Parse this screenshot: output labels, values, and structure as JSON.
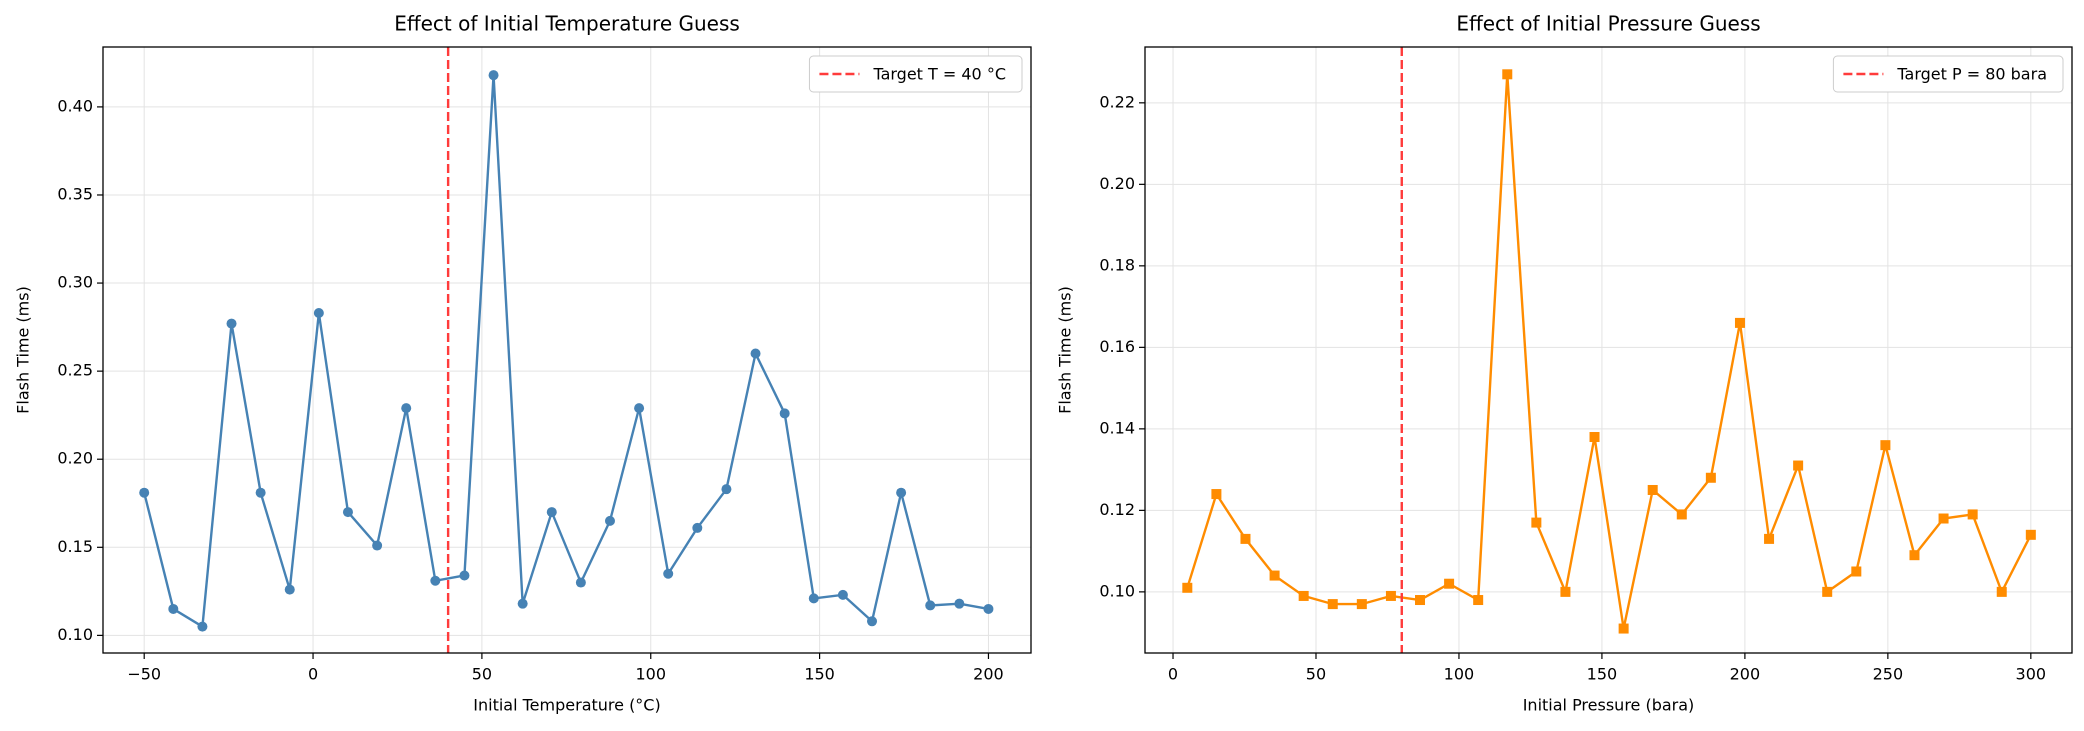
{
  "chart_data": [
    {
      "type": "line",
      "title": "Effect of Initial Temperature Guess",
      "x_label": "Initial Temperature (°C)",
      "y_label": "Flash Time (ms)",
      "x": [
        -50,
        -41.38,
        -32.76,
        -24.14,
        -15.52,
        -6.9,
        1.72,
        10.34,
        18.97,
        27.59,
        36.21,
        44.83,
        53.45,
        62.07,
        70.69,
        79.31,
        87.93,
        96.55,
        105.17,
        113.79,
        122.41,
        131.03,
        139.66,
        148.28,
        156.9,
        165.52,
        174.14,
        182.76,
        191.38,
        200
      ],
      "values": [
        0.181,
        0.115,
        0.105,
        0.277,
        0.181,
        0.126,
        0.283,
        0.17,
        0.151,
        0.229,
        0.131,
        0.134,
        0.418,
        0.118,
        0.17,
        0.13,
        0.165,
        0.229,
        0.135,
        0.161,
        0.183,
        0.26,
        0.226,
        0.121,
        0.123,
        0.108,
        0.181,
        0.117,
        0.118,
        0.115
      ],
      "color": "#4682b4",
      "marker": "circle",
      "reference_line": {
        "x": 40,
        "label": "Target T = 40 °C",
        "color": "#ff3b3b"
      },
      "legend": "upper right",
      "grid": true,
      "xlim": [
        -62.2,
        212.6
      ],
      "ylim": [
        0.09,
        0.434
      ],
      "xticks": [
        {
          "value": -50,
          "label": "−50"
        },
        0,
        50,
        100,
        150,
        200
      ],
      "yticks": [
        {
          "value": 0.1,
          "label": "0.10"
        },
        0.15,
        {
          "value": 0.2,
          "label": "0.20"
        },
        0.25,
        {
          "value": 0.3,
          "label": "0.30"
        },
        0.35,
        {
          "value": 0.4,
          "label": "0.40"
        }
      ]
    },
    {
      "type": "line",
      "title": "Effect of Initial Pressure Guess",
      "x_label": "Initial Pressure (bara)",
      "y_label": "Flash Time (ms)",
      "x": [
        5,
        15.17,
        25.34,
        35.52,
        45.69,
        55.86,
        66.03,
        76.21,
        86.38,
        96.55,
        106.72,
        116.9,
        127.07,
        137.24,
        147.41,
        157.59,
        167.76,
        177.93,
        188.1,
        198.28,
        208.45,
        218.62,
        228.79,
        238.97,
        249.14,
        259.31,
        269.48,
        279.66,
        289.83,
        300
      ],
      "values": [
        0.101,
        0.124,
        0.113,
        0.104,
        0.099,
        0.097,
        0.097,
        0.099,
        0.098,
        0.102,
        0.098,
        0.227,
        0.117,
        0.1,
        0.138,
        0.091,
        0.125,
        0.119,
        0.128,
        0.166,
        0.113,
        0.131,
        0.1,
        0.105,
        0.136,
        0.109,
        0.118,
        0.119,
        0.1,
        0.114
      ],
      "color": "#ff8c00",
      "marker": "square",
      "reference_line": {
        "x": 80,
        "label": "Target P = 80 bara",
        "color": "#ff3b3b"
      },
      "legend": "upper right",
      "grid": true,
      "xlim": [
        -9.8,
        314.4
      ],
      "ylim": [
        0.085,
        0.2337
      ],
      "xticks": [
        0,
        50,
        100,
        150,
        200,
        250,
        300
      ],
      "yticks": [
        {
          "value": 0.1,
          "label": "0.10"
        },
        0.12,
        0.14,
        0.16,
        0.18,
        {
          "value": 0.2,
          "label": "0.20"
        },
        0.22
      ]
    }
  ]
}
